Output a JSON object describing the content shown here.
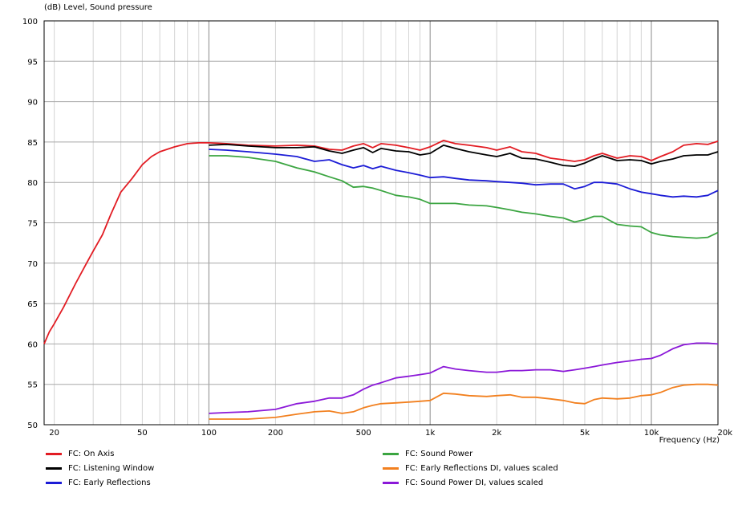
{
  "chart_data": {
    "type": "line",
    "ylabel": "(dB)  Level, Sound pressure",
    "xlabel": "Frequency  (Hz)",
    "x_scale": "log",
    "xlim": [
      18,
      20000
    ],
    "ylim": [
      50,
      100
    ],
    "grid": true,
    "y_ticks": [
      "100",
      "95",
      "90",
      "85",
      "80",
      "75",
      "70",
      "65",
      "60",
      "55",
      "50"
    ],
    "x_ticks": [
      {
        "value": 20,
        "label": "20"
      },
      {
        "value": 50,
        "label": "50"
      },
      {
        "value": 100,
        "label": "100"
      },
      {
        "value": 200,
        "label": "200"
      },
      {
        "value": 500,
        "label": "500"
      },
      {
        "value": 1000,
        "label": "1k"
      },
      {
        "value": 2000,
        "label": "2k"
      },
      {
        "value": 5000,
        "label": "5k"
      },
      {
        "value": 10000,
        "label": "10k"
      },
      {
        "value": 20000,
        "label": "20k"
      }
    ],
    "series": [
      {
        "name": "FC: On Axis",
        "color": "#e21c23",
        "points": [
          [
            18,
            60
          ],
          [
            19,
            61.5
          ],
          [
            20,
            62.5
          ],
          [
            22,
            64.5
          ],
          [
            25,
            67.5
          ],
          [
            28,
            70
          ],
          [
            30,
            71.5
          ],
          [
            33,
            73.5
          ],
          [
            36,
            76
          ],
          [
            40,
            78.8
          ],
          [
            45,
            80.5
          ],
          [
            50,
            82.2
          ],
          [
            55,
            83.2
          ],
          [
            60,
            83.8
          ],
          [
            70,
            84.4
          ],
          [
            80,
            84.8
          ],
          [
            90,
            84.9
          ],
          [
            100,
            84.9
          ],
          [
            120,
            84.8
          ],
          [
            150,
            84.6
          ],
          [
            200,
            84.5
          ],
          [
            250,
            84.6
          ],
          [
            300,
            84.5
          ],
          [
            350,
            84.1
          ],
          [
            400,
            84.0
          ],
          [
            450,
            84.5
          ],
          [
            500,
            84.8
          ],
          [
            550,
            84.3
          ],
          [
            600,
            84.8
          ],
          [
            700,
            84.6
          ],
          [
            800,
            84.3
          ],
          [
            900,
            84.0
          ],
          [
            1000,
            84.4
          ],
          [
            1150,
            85.2
          ],
          [
            1300,
            84.8
          ],
          [
            1500,
            84.6
          ],
          [
            1800,
            84.3
          ],
          [
            2000,
            84.0
          ],
          [
            2300,
            84.4
          ],
          [
            2600,
            83.8
          ],
          [
            3000,
            83.6
          ],
          [
            3500,
            83.0
          ],
          [
            4000,
            82.8
          ],
          [
            4500,
            82.6
          ],
          [
            5000,
            82.8
          ],
          [
            5500,
            83.3
          ],
          [
            6000,
            83.6
          ],
          [
            7000,
            83.0
          ],
          [
            8000,
            83.3
          ],
          [
            9000,
            83.2
          ],
          [
            10000,
            82.7
          ],
          [
            11000,
            83.2
          ],
          [
            12500,
            83.8
          ],
          [
            14000,
            84.6
          ],
          [
            16000,
            84.8
          ],
          [
            18000,
            84.7
          ],
          [
            20000,
            85.1
          ]
        ]
      },
      {
        "name": "FC: Listening Window",
        "color": "#000000",
        "points": [
          [
            100,
            84.6
          ],
          [
            120,
            84.7
          ],
          [
            150,
            84.5
          ],
          [
            200,
            84.3
          ],
          [
            250,
            84.3
          ],
          [
            300,
            84.4
          ],
          [
            350,
            83.9
          ],
          [
            400,
            83.6
          ],
          [
            450,
            84.0
          ],
          [
            500,
            84.3
          ],
          [
            550,
            83.7
          ],
          [
            600,
            84.2
          ],
          [
            700,
            83.9
          ],
          [
            800,
            83.8
          ],
          [
            900,
            83.4
          ],
          [
            1000,
            83.6
          ],
          [
            1150,
            84.6
          ],
          [
            1300,
            84.2
          ],
          [
            1500,
            83.8
          ],
          [
            1800,
            83.4
          ],
          [
            2000,
            83.2
          ],
          [
            2300,
            83.6
          ],
          [
            2600,
            83.0
          ],
          [
            3000,
            82.9
          ],
          [
            3500,
            82.5
          ],
          [
            4000,
            82.1
          ],
          [
            4500,
            82.0
          ],
          [
            5000,
            82.4
          ],
          [
            5500,
            82.9
          ],
          [
            6000,
            83.3
          ],
          [
            7000,
            82.7
          ],
          [
            8000,
            82.8
          ],
          [
            9000,
            82.7
          ],
          [
            10000,
            82.3
          ],
          [
            11000,
            82.6
          ],
          [
            12500,
            82.9
          ],
          [
            14000,
            83.3
          ],
          [
            16000,
            83.4
          ],
          [
            18000,
            83.4
          ],
          [
            20000,
            83.8
          ]
        ]
      },
      {
        "name": "FC: Early Reflections",
        "color": "#1c1cd6",
        "points": [
          [
            100,
            84.1
          ],
          [
            120,
            84.0
          ],
          [
            150,
            83.8
          ],
          [
            200,
            83.5
          ],
          [
            250,
            83.2
          ],
          [
            300,
            82.6
          ],
          [
            350,
            82.8
          ],
          [
            400,
            82.2
          ],
          [
            450,
            81.8
          ],
          [
            500,
            82.1
          ],
          [
            550,
            81.7
          ],
          [
            600,
            82.0
          ],
          [
            700,
            81.5
          ],
          [
            800,
            81.2
          ],
          [
            900,
            80.9
          ],
          [
            1000,
            80.6
          ],
          [
            1150,
            80.7
          ],
          [
            1300,
            80.5
          ],
          [
            1500,
            80.3
          ],
          [
            1800,
            80.2
          ],
          [
            2000,
            80.1
          ],
          [
            2300,
            80.0
          ],
          [
            2600,
            79.9
          ],
          [
            3000,
            79.7
          ],
          [
            3500,
            79.8
          ],
          [
            4000,
            79.8
          ],
          [
            4500,
            79.2
          ],
          [
            5000,
            79.5
          ],
          [
            5500,
            80.0
          ],
          [
            6000,
            80.0
          ],
          [
            7000,
            79.8
          ],
          [
            8000,
            79.2
          ],
          [
            9000,
            78.8
          ],
          [
            10000,
            78.6
          ],
          [
            11000,
            78.4
          ],
          [
            12500,
            78.2
          ],
          [
            14000,
            78.3
          ],
          [
            16000,
            78.2
          ],
          [
            18000,
            78.4
          ],
          [
            20000,
            79.0
          ]
        ]
      },
      {
        "name": "FC: Sound Power",
        "color": "#3ba541",
        "points": [
          [
            100,
            83.3
          ],
          [
            120,
            83.3
          ],
          [
            150,
            83.1
          ],
          [
            200,
            82.6
          ],
          [
            250,
            81.8
          ],
          [
            300,
            81.3
          ],
          [
            350,
            80.7
          ],
          [
            400,
            80.2
          ],
          [
            450,
            79.4
          ],
          [
            500,
            79.5
          ],
          [
            550,
            79.3
          ],
          [
            600,
            79.0
          ],
          [
            700,
            78.4
          ],
          [
            800,
            78.2
          ],
          [
            900,
            77.9
          ],
          [
            1000,
            77.4
          ],
          [
            1150,
            77.4
          ],
          [
            1300,
            77.4
          ],
          [
            1500,
            77.2
          ],
          [
            1800,
            77.1
          ],
          [
            2000,
            76.9
          ],
          [
            2300,
            76.6
          ],
          [
            2600,
            76.3
          ],
          [
            3000,
            76.1
          ],
          [
            3500,
            75.8
          ],
          [
            4000,
            75.6
          ],
          [
            4500,
            75.1
          ],
          [
            5000,
            75.4
          ],
          [
            5500,
            75.8
          ],
          [
            6000,
            75.8
          ],
          [
            7000,
            74.8
          ],
          [
            8000,
            74.6
          ],
          [
            9000,
            74.5
          ],
          [
            10000,
            73.8
          ],
          [
            11000,
            73.5
          ],
          [
            12500,
            73.3
          ],
          [
            14000,
            73.2
          ],
          [
            16000,
            73.1
          ],
          [
            18000,
            73.2
          ],
          [
            20000,
            73.8
          ]
        ]
      },
      {
        "name": "FC: Early Reflections DI, values scaled",
        "color": "#f2801f",
        "points": [
          [
            100,
            50.7
          ],
          [
            120,
            50.7
          ],
          [
            150,
            50.7
          ],
          [
            200,
            50.9
          ],
          [
            250,
            51.3
          ],
          [
            300,
            51.6
          ],
          [
            350,
            51.7
          ],
          [
            400,
            51.4
          ],
          [
            450,
            51.6
          ],
          [
            500,
            52.1
          ],
          [
            550,
            52.4
          ],
          [
            600,
            52.6
          ],
          [
            700,
            52.7
          ],
          [
            800,
            52.8
          ],
          [
            900,
            52.9
          ],
          [
            1000,
            53.0
          ],
          [
            1150,
            53.9
          ],
          [
            1300,
            53.8
          ],
          [
            1500,
            53.6
          ],
          [
            1800,
            53.5
          ],
          [
            2000,
            53.6
          ],
          [
            2300,
            53.7
          ],
          [
            2600,
            53.4
          ],
          [
            3000,
            53.4
          ],
          [
            3500,
            53.2
          ],
          [
            4000,
            53.0
          ],
          [
            4500,
            52.7
          ],
          [
            5000,
            52.6
          ],
          [
            5500,
            53.1
          ],
          [
            6000,
            53.3
          ],
          [
            7000,
            53.2
          ],
          [
            8000,
            53.3
          ],
          [
            9000,
            53.6
          ],
          [
            10000,
            53.7
          ],
          [
            11000,
            54.0
          ],
          [
            12500,
            54.6
          ],
          [
            14000,
            54.9
          ],
          [
            16000,
            55.0
          ],
          [
            18000,
            55.0
          ],
          [
            20000,
            54.9
          ]
        ]
      },
      {
        "name": "FC: Sound Power DI, values scaled",
        "color": "#8b18d8",
        "points": [
          [
            100,
            51.4
          ],
          [
            120,
            51.5
          ],
          [
            150,
            51.6
          ],
          [
            200,
            51.9
          ],
          [
            250,
            52.6
          ],
          [
            300,
            52.9
          ],
          [
            350,
            53.3
          ],
          [
            400,
            53.3
          ],
          [
            450,
            53.7
          ],
          [
            500,
            54.4
          ],
          [
            550,
            54.9
          ],
          [
            600,
            55.2
          ],
          [
            700,
            55.8
          ],
          [
            800,
            56.0
          ],
          [
            900,
            56.2
          ],
          [
            1000,
            56.4
          ],
          [
            1150,
            57.2
          ],
          [
            1300,
            56.9
          ],
          [
            1500,
            56.7
          ],
          [
            1800,
            56.5
          ],
          [
            2000,
            56.5
          ],
          [
            2300,
            56.7
          ],
          [
            2600,
            56.7
          ],
          [
            3000,
            56.8
          ],
          [
            3500,
            56.8
          ],
          [
            4000,
            56.6
          ],
          [
            4500,
            56.8
          ],
          [
            5000,
            57.0
          ],
          [
            5500,
            57.2
          ],
          [
            6000,
            57.4
          ],
          [
            7000,
            57.7
          ],
          [
            8000,
            57.9
          ],
          [
            9000,
            58.1
          ],
          [
            10000,
            58.2
          ],
          [
            11000,
            58.6
          ],
          [
            12500,
            59.4
          ],
          [
            14000,
            59.9
          ],
          [
            16000,
            60.1
          ],
          [
            18000,
            60.1
          ],
          [
            20000,
            60.0
          ]
        ]
      }
    ]
  }
}
